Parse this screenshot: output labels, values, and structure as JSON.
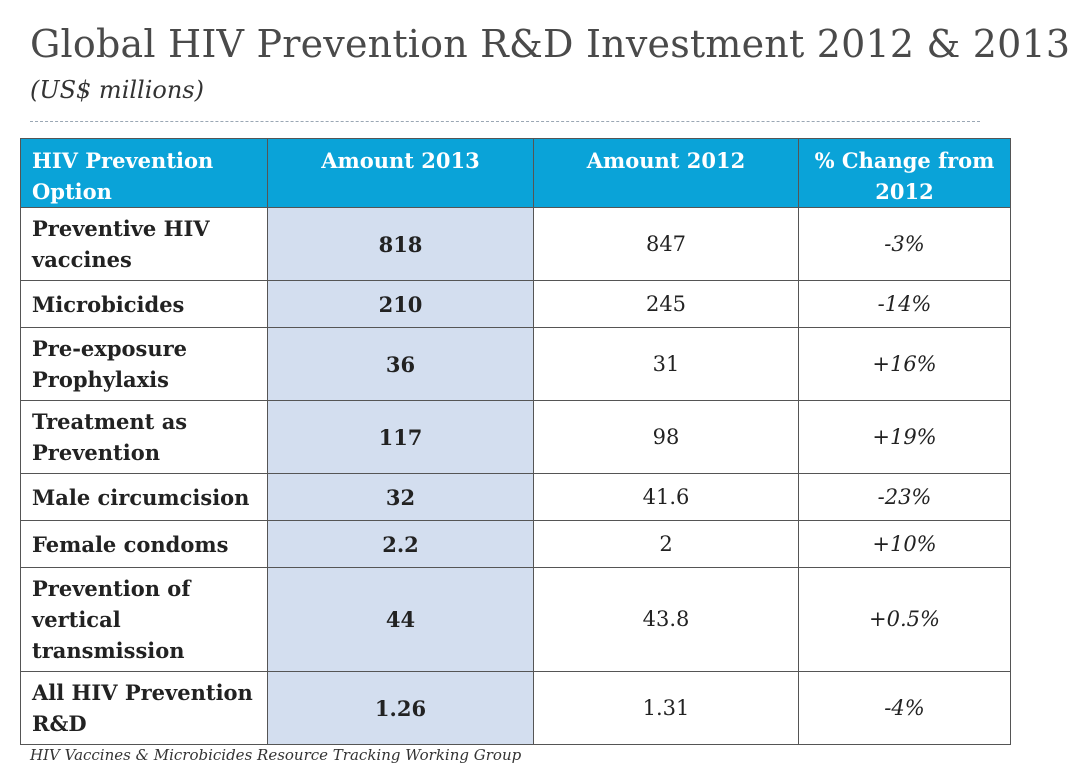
{
  "title": "Global HIV Prevention R&D Investment 2012 & 2013",
  "subtitle": "(US$ millions)",
  "table": {
    "headers": [
      "HIV Prevention Option",
      "Amount 2013",
      "Amount 2012",
      "% Change from 2012"
    ],
    "rows": [
      {
        "option": "Preventive HIV vaccines",
        "amount_2013": "818",
        "amount_2012": "847",
        "change": "-3%"
      },
      {
        "option": "Microbicides",
        "amount_2013": "210",
        "amount_2012": "245",
        "change": "-14%"
      },
      {
        "option": "Pre-exposure Prophylaxis",
        "amount_2013": "36",
        "amount_2012": "31",
        "change": "+16%"
      },
      {
        "option": "Treatment as Prevention",
        "amount_2013": "117",
        "amount_2012": "98",
        "change": "+19%"
      },
      {
        "option": "Male circumcision",
        "amount_2013": "32",
        "amount_2012": "41.6",
        "change": "-23%"
      },
      {
        "option": "Female condoms",
        "amount_2013": "2.2",
        "amount_2012": "2",
        "change": "+10%"
      },
      {
        "option": "Prevention of vertical transmission",
        "amount_2013": "44",
        "amount_2012": "43.8",
        "change": "+0.5%"
      },
      {
        "option": "All HIV Prevention R&D",
        "amount_2013": "1.26",
        "amount_2012": "1.31",
        "change": "-4%"
      }
    ]
  },
  "source": "HIV Vaccines & Microbicides Resource Tracking Working Group",
  "colors": {
    "header_bg": "#0aa3d8",
    "highlight_column_bg": "#d3deef"
  }
}
